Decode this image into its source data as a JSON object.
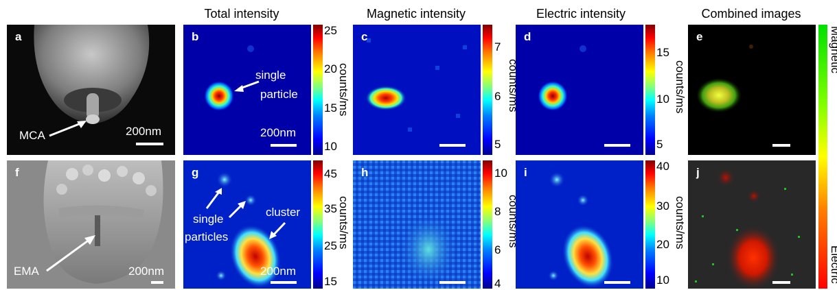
{
  "column_titles": [
    "Total intensity",
    "Magnetic intensity",
    "Electric intensity",
    "Combined images"
  ],
  "panels": {
    "a": {
      "label": "a",
      "annotation": "MCA",
      "scalebar": "200nm"
    },
    "b": {
      "label": "b",
      "annotation_line1": "single",
      "annotation_line2": "particle",
      "scalebar": "200nm"
    },
    "c": {
      "label": "c"
    },
    "d": {
      "label": "d"
    },
    "e": {
      "label": "e"
    },
    "f": {
      "label": "f",
      "annotation": "EMA",
      "scalebar": "200nm"
    },
    "g": {
      "label": "g",
      "annotation_line1": "single",
      "annotation_line2": "particles",
      "annotation_cluster": "cluster",
      "scalebar": "200nm"
    },
    "h": {
      "label": "h"
    },
    "i": {
      "label": "i"
    },
    "j": {
      "label": "j"
    }
  },
  "colorbars": {
    "unit": "counts/ms",
    "b": [
      "25",
      "20",
      "15",
      "10"
    ],
    "c": [
      "7",
      "6",
      "5"
    ],
    "d": [
      "15",
      "10",
      "5"
    ],
    "g": [
      "45",
      "35",
      "25",
      "15"
    ],
    "h": [
      "10",
      "8",
      "6",
      "4"
    ],
    "i": [
      "40",
      "30",
      "20",
      "10"
    ]
  },
  "combined_colorbar": {
    "top_label": "Magnetic",
    "bottom_label": "Electric",
    "top_color": "#00e000",
    "bottom_color": "#ff0000"
  },
  "colors": {
    "jet_low": "#00008f",
    "jet_high": "#800000",
    "sem_bg": "#2a2a2a"
  }
}
